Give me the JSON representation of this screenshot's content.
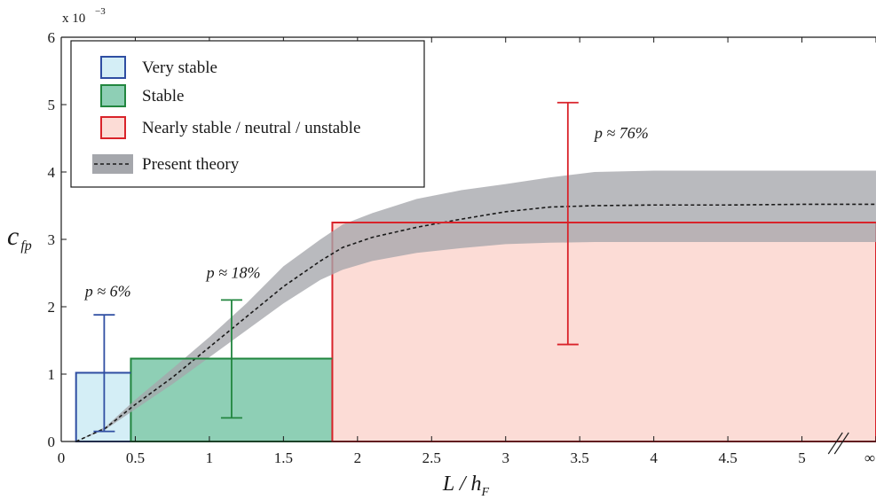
{
  "chart_data": {
    "type": "bar",
    "xlabel": "L / h",
    "xlabel_sub": "F",
    "ylabel": "c",
    "ylabel_sub": "fp",
    "y_multiplier_label": "x 10",
    "y_multiplier_exp": "−3",
    "xlim": [
      0,
      5.5
    ],
    "ylim": [
      0,
      6
    ],
    "x_ticks": [
      {
        "value": 0,
        "label": "0"
      },
      {
        "value": 0.5,
        "label": "0.5"
      },
      {
        "value": 1,
        "label": "1"
      },
      {
        "value": 1.5,
        "label": "1.5"
      },
      {
        "value": 2,
        "label": "2"
      },
      {
        "value": 2.5,
        "label": "2.5"
      },
      {
        "value": 3,
        "label": "3"
      },
      {
        "value": 3.5,
        "label": "3.5"
      },
      {
        "value": 4,
        "label": "4"
      },
      {
        "value": 4.5,
        "label": "4.5"
      },
      {
        "value": 5,
        "label": "5"
      },
      {
        "value": 5.5,
        "label": "∞"
      }
    ],
    "y_ticks": [
      {
        "value": 0,
        "label": "0"
      },
      {
        "value": 1,
        "label": "1"
      },
      {
        "value": 2,
        "label": "2"
      },
      {
        "value": 3,
        "label": "3"
      },
      {
        "value": 4,
        "label": "4"
      },
      {
        "value": 5,
        "label": "5"
      },
      {
        "value": 6,
        "label": "6"
      }
    ],
    "axis_break_at": 5.25,
    "bars": [
      {
        "name": "Very stable",
        "x0": 0.1,
        "x1": 0.47,
        "value": 1.02,
        "fill": "#d4eef6",
        "stroke": "#2f4ea2",
        "err_x": 0.29,
        "err_low": 0.15,
        "err_high": 1.88,
        "annotation": "p ≈ 6%",
        "ann_x": 0.16,
        "ann_y": 2.15
      },
      {
        "name": "Stable",
        "x0": 0.47,
        "x1": 1.83,
        "value": 1.23,
        "fill": "#8ecfb5",
        "stroke": "#22863f",
        "err_x": 1.15,
        "err_low": 0.35,
        "err_high": 2.1,
        "annotation": "p ≈ 18%",
        "ann_x": 0.98,
        "ann_y": 2.43
      },
      {
        "name": "Nearly stable / neutral / unstable",
        "x0": 1.83,
        "x1": 5.5,
        "value": 3.25,
        "fill": "#fcdcd6",
        "stroke": "#d9232a",
        "err_x": 3.42,
        "err_low": 1.44,
        "err_high": 5.03,
        "annotation": "p ≈ 76%",
        "ann_x": 3.6,
        "ann_y": 4.5
      }
    ],
    "theory": {
      "name": "Present theory",
      "x": [
        0.1,
        0.3,
        0.5,
        0.75,
        1.0,
        1.25,
        1.5,
        1.75,
        1.9,
        2.1,
        2.4,
        2.7,
        3.0,
        3.3,
        3.6,
        4.0,
        4.5,
        5.0,
        5.5
      ],
      "mean": [
        0.0,
        0.2,
        0.55,
        0.95,
        1.4,
        1.85,
        2.3,
        2.68,
        2.88,
        3.03,
        3.18,
        3.3,
        3.41,
        3.48,
        3.5,
        3.51,
        3.51,
        3.52,
        3.52
      ],
      "lower": [
        0.0,
        0.18,
        0.48,
        0.85,
        1.25,
        1.65,
        2.05,
        2.4,
        2.55,
        2.68,
        2.8,
        2.87,
        2.93,
        2.95,
        2.96,
        2.96,
        2.96,
        2.96,
        2.96
      ],
      "upper": [
        0.0,
        0.22,
        0.62,
        1.08,
        1.55,
        2.05,
        2.6,
        3.0,
        3.22,
        3.39,
        3.6,
        3.73,
        3.82,
        3.92,
        4.0,
        4.02,
        4.02,
        4.02,
        4.02
      ],
      "band_color": "#a5a7ac",
      "line_color": "#1a1a1a"
    },
    "legend": {
      "position": "top-left",
      "entries": [
        {
          "label": "Very stable",
          "fill": "#d4eef6",
          "stroke": "#2f4ea2",
          "kind": "box"
        },
        {
          "label": "Stable",
          "fill": "#8ecfb5",
          "stroke": "#22863f",
          "kind": "box"
        },
        {
          "label": "Nearly stable / neutral / unstable",
          "fill": "#fcdcd6",
          "stroke": "#d9232a",
          "kind": "box"
        },
        {
          "label": "Present theory",
          "fill": "#a5a7ac",
          "stroke": "#1a1a1a",
          "kind": "band"
        }
      ]
    }
  }
}
